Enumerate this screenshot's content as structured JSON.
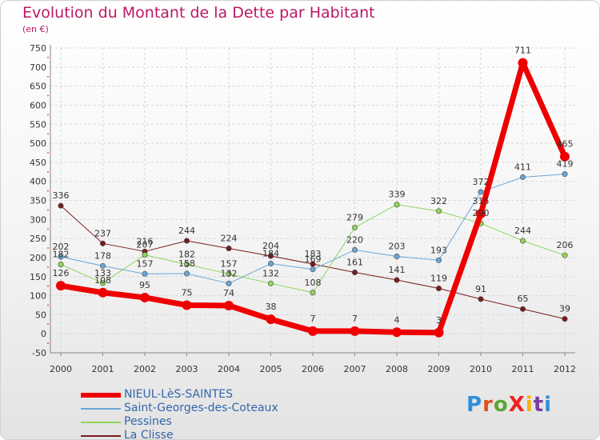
{
  "title": "Evolution du Montant de la Dette par Habitant",
  "subtitle": "(en €)",
  "logo": {
    "text": "ProXiti",
    "colors": [
      "#2f8fd8",
      "#e0501c",
      "#5aa832",
      "#ee2222",
      "#f2b20a",
      "#7a3da0",
      "#2f8fd8"
    ]
  },
  "chart_data": {
    "type": "line",
    "x": [
      "2000",
      "2001",
      "2002",
      "2003",
      "2004",
      "2005",
      "2006",
      "2007",
      "2008",
      "2009",
      "2010",
      "2011",
      "2012"
    ],
    "ylim": [
      -50,
      750
    ],
    "yticks": [
      -50,
      0,
      50,
      100,
      150,
      200,
      250,
      300,
      350,
      400,
      450,
      500,
      550,
      600,
      650,
      700,
      750
    ],
    "grid": true,
    "legend_position": "bottom-left",
    "series": [
      {
        "name": "La Clisse",
        "color": "#7a1c1c",
        "width": 1,
        "values": [
          336,
          237,
          216,
          244,
          224,
          204,
          183,
          161,
          141,
          119,
          91,
          65,
          39
        ]
      },
      {
        "name": "Pessines",
        "color": "#8fd65a",
        "width": 1,
        "values": [
          182,
          133,
          207,
          182,
          157,
          132,
          108,
          279,
          339,
          322,
          290,
          244,
          206
        ]
      },
      {
        "name": "Saint-Georges-des-Coteaux",
        "color": "#6aa6d6",
        "width": 1,
        "values": [
          202,
          178,
          157,
          158,
          132,
          184,
          169,
          220,
          203,
          193,
          372,
          411,
          419
        ]
      },
      {
        "name": "NIEUL-LèS-SAINTES",
        "color": "#ee0000",
        "width": 7,
        "values": [
          126,
          108,
          95,
          75,
          74,
          38,
          7,
          7,
          4,
          3,
          315,
          711,
          465
        ]
      }
    ],
    "legend_order": [
      "NIEUL-LèS-SAINTES",
      "Saint-Georges-des-Coteaux",
      "Pessines",
      "La Clisse"
    ]
  }
}
